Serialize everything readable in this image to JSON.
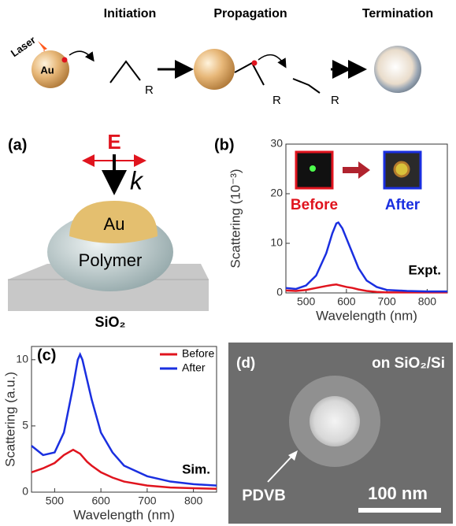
{
  "scheme": {
    "steps": [
      "Initiation",
      "Propagation",
      "Termination"
    ],
    "laser": "Laser",
    "au": "Au",
    "r_labels": [
      "R",
      "R",
      "R"
    ]
  },
  "panel_a": {
    "panel_label": "(a)",
    "field": "E",
    "wavevector": "k",
    "cap": "Au",
    "shell": "Polymer",
    "substrate": "SiO₂"
  },
  "chart_data": [
    {
      "type": "line",
      "panel_label": "(b)",
      "xlabel": "Wavelength (nm)",
      "ylabel": "Scattering (10⁻³)",
      "xlim": [
        450,
        850
      ],
      "xticks": [
        500,
        600,
        700,
        800
      ],
      "ylim": [
        0,
        30
      ],
      "yticks": [
        0,
        10,
        20,
        30
      ],
      "inset_labels": [
        "Before",
        "After"
      ],
      "annotation": "Expt.",
      "series": [
        {
          "name": "Before",
          "color": "#e0141e",
          "x": [
            450,
            475,
            500,
            525,
            550,
            565,
            575,
            580,
            590,
            600,
            615,
            630,
            650,
            675,
            700,
            750,
            800,
            850
          ],
          "values": [
            0.5,
            0.4,
            0.6,
            1,
            1.4,
            1.6,
            1.7,
            1.6,
            1.4,
            1.2,
            1,
            0.7,
            0.4,
            0.2,
            0.1,
            0.1,
            0.1,
            0.1
          ]
        },
        {
          "name": "After",
          "color": "#1a2fe0",
          "x": [
            450,
            475,
            500,
            525,
            550,
            565,
            575,
            580,
            590,
            600,
            615,
            630,
            650,
            675,
            700,
            750,
            800,
            850
          ],
          "values": [
            1,
            0.8,
            1.5,
            3.5,
            8,
            12,
            14,
            14.2,
            13,
            11,
            8,
            5,
            2.5,
            1.2,
            0.6,
            0.4,
            0.3,
            0.3
          ]
        }
      ]
    },
    {
      "type": "line",
      "panel_label": "(c)",
      "xlabel": "Wavelength (nm)",
      "ylabel": "Scattering (a.u.)",
      "xlim": [
        450,
        850
      ],
      "xticks": [
        500,
        600,
        700,
        800
      ],
      "ylim": [
        0,
        11
      ],
      "yticks": [
        0,
        5,
        10
      ],
      "annotation": "Sim.",
      "legend": "upper right",
      "series": [
        {
          "name": "Before",
          "color": "#e0141e",
          "x": [
            450,
            475,
            500,
            520,
            540,
            550,
            555,
            560,
            570,
            580,
            600,
            625,
            650,
            700,
            750,
            800,
            850
          ],
          "values": [
            1.5,
            1.8,
            2.2,
            2.8,
            3.2,
            3,
            2.9,
            2.7,
            2.3,
            2,
            1.5,
            1.1,
            0.8,
            0.5,
            0.35,
            0.3,
            0.25
          ]
        },
        {
          "name": "After",
          "color": "#1a2fe0",
          "x": [
            450,
            475,
            500,
            520,
            540,
            550,
            555,
            560,
            570,
            580,
            600,
            625,
            650,
            700,
            750,
            800,
            850
          ],
          "values": [
            3.5,
            2.8,
            3,
            4.5,
            8,
            10,
            10.4,
            10,
            8.5,
            7,
            4.5,
            3,
            2,
            1.2,
            0.8,
            0.6,
            0.5
          ]
        }
      ]
    }
  ],
  "panel_d": {
    "panel_label": "(d)",
    "substrate": "on SiO₂/Si",
    "shell": "PDVB",
    "scale": "100 nm"
  }
}
